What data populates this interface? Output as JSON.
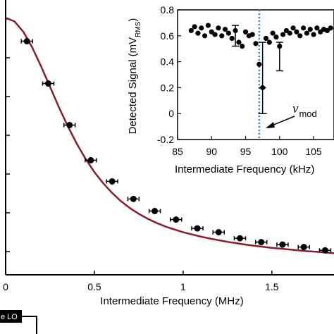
{
  "chart_data": [
    {
      "type": "line",
      "title": "",
      "xlabel": "Intermediate Frequency (MHz)",
      "ylabel": "",
      "xlim": [
        0,
        1.85
      ],
      "ylim": [
        0,
        1.0
      ],
      "xticks": [
        "0",
        "0.5",
        "1",
        "1.5"
      ],
      "grid": false,
      "colors": {
        "fit": "#8b1a2e",
        "points": "#000000"
      },
      "series": [
        {
          "kind": "fit-curve",
          "x": [
            0,
            0.05,
            0.1,
            0.15,
            0.2,
            0.25,
            0.3,
            0.35,
            0.4,
            0.45,
            0.5,
            0.55,
            0.6,
            0.65,
            0.7,
            0.75,
            0.8,
            0.85,
            0.9,
            0.95,
            1.0,
            1.05,
            1.1,
            1.15,
            1.2,
            1.25,
            1.3,
            1.35,
            1.4,
            1.45,
            1.5,
            1.55,
            1.6,
            1.65,
            1.7,
            1.75,
            1.8,
            1.85
          ],
          "y": [
            0.935,
            0.922,
            0.884,
            0.827,
            0.758,
            0.684,
            0.61,
            0.541,
            0.478,
            0.422,
            0.374,
            0.333,
            0.298,
            0.268,
            0.243,
            0.222,
            0.204,
            0.189,
            0.176,
            0.165,
            0.155,
            0.147,
            0.139,
            0.132,
            0.126,
            0.12,
            0.115,
            0.11,
            0.106,
            0.102,
            0.098,
            0.095,
            0.092,
            0.089,
            0.086,
            0.084,
            0.081,
            0.079
          ]
        },
        {
          "kind": "data-points",
          "x": [
            0.12,
            0.24,
            0.36,
            0.48,
            0.6,
            0.72,
            0.84,
            0.96,
            1.08,
            1.2,
            1.32,
            1.44,
            1.56,
            1.68,
            1.8
          ],
          "y": [
            0.85,
            0.696,
            0.545,
            0.417,
            0.34,
            0.276,
            0.232,
            0.201,
            0.169,
            0.155,
            0.133,
            0.119,
            0.11,
            0.101,
            0.089
          ]
        }
      ]
    },
    {
      "type": "scatter",
      "title": "",
      "xlabel": "Intermediate Frequency (kHz)",
      "ylabel": "Detected Signal (mV",
      "ylabel_sub": "RMS",
      "ylabel_close": ")",
      "xlim": [
        85,
        108
      ],
      "ylim": [
        -0.2,
        0.8
      ],
      "xticks": [
        "85",
        "90",
        "95",
        "100",
        "105"
      ],
      "yticks": [
        "-0.2",
        "0",
        "0.2",
        "0.4",
        "0.6",
        "0.8"
      ],
      "grid": false,
      "marker_line": {
        "x": 97,
        "color": "#2b8cc4"
      },
      "annotation": {
        "symbol": "ν",
        "sub": "mod"
      },
      "series": [
        {
          "kind": "data-points",
          "x": [
            87,
            87.5,
            88,
            88.5,
            89,
            89.5,
            90,
            90.5,
            91,
            91.5,
            92,
            92.5,
            93,
            93.5,
            94,
            94.5,
            95,
            95.5,
            96,
            96.5,
            97,
            97.5,
            98,
            98.5,
            99,
            99.5,
            100,
            100.5,
            101,
            101.5,
            102,
            102.5,
            103,
            103.5,
            104,
            104.5,
            105,
            105.5,
            106,
            106.5,
            107,
            107.5
          ],
          "y": [
            0.64,
            0.67,
            0.62,
            0.66,
            0.6,
            0.68,
            0.63,
            0.61,
            0.66,
            0.6,
            0.65,
            0.62,
            0.58,
            0.64,
            0.55,
            0.52,
            0.63,
            0.6,
            0.61,
            0.54,
            0.38,
            0.2,
            0.58,
            0.55,
            0.62,
            0.59,
            0.52,
            0.61,
            0.64,
            0.62,
            0.66,
            0.63,
            0.6,
            0.66,
            0.62,
            0.65,
            0.61,
            0.66,
            0.63,
            0.65,
            0.64,
            0.66
          ]
        }
      ]
    }
  ],
  "diagram_box": {
    "label": "e LO"
  }
}
